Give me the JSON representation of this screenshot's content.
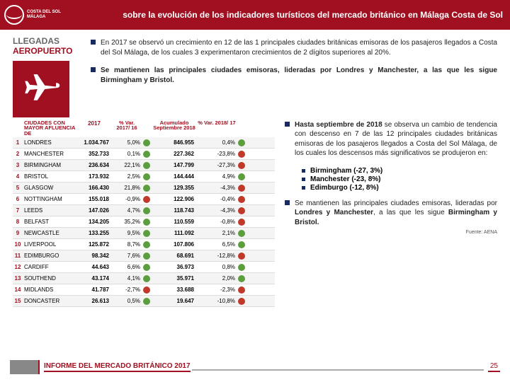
{
  "logo": {
    "line1": "COSTA DEL SOL",
    "line2": "MÁLAGA"
  },
  "header_title": "sobre la evolución de los indicadores turísticos del mercado británico en Málaga Costa de Sol",
  "section": {
    "line1": "LLEGADAS",
    "line2": "AEROPUERTO"
  },
  "bullets": {
    "b1": "En 2017 se observó un crecimiento en 12 de las 1 principales ciudades británicas emisoras de los pasajeros llegados a Costa del Sol Málaga, de los cuales 3 experimentaron crecimientos de 2 dígitos superiores al 20%.",
    "b2": "Se mantienen las principales ciudades emisoras, lideradas por Londres y Manchester, a las que les sigue Birmingham y Bristol.",
    "r1": "Hasta septiembre de 2018 se observa un cambio de tendencia con descenso en 7 de las 12 principales ciudades británicas emisoras de los pasajeros llegados a Costa del Sol Málaga, de los cuales los descensos más significativos se produjeron en:",
    "sub": [
      "Birmingham (-27, 3%)",
      "Manchester (-23, 8%)",
      "Edimburgo (-12, 8%)"
    ],
    "r2": "Se mantienen las principales ciudades emisoras, lideradas por Londres y Manchester, a las que les sigue Birmingham y Bristol."
  },
  "table": {
    "head": {
      "aflu": "CIUDADES CON MAYOR AFLUENCIA DE",
      "c2017": "2017",
      "var1": "% Var. 2017/ 16",
      "sep": "Acumulado Septiembre 2018",
      "var2": "% Var. 2018/ 17"
    },
    "rows": [
      {
        "i": 1,
        "city": "LONDRES",
        "v2017": "1.034.767",
        "var1": "5,0%",
        "d1": "green",
        "sep": "846.955",
        "var2": "0,4%",
        "d2": "green"
      },
      {
        "i": 2,
        "city": "MANCHESTER",
        "v2017": "352.733",
        "var1": "0,1%",
        "d1": "green",
        "sep": "227.362",
        "var2": "-23,8%",
        "d2": "redc"
      },
      {
        "i": 3,
        "city": "BIRMINGHAM",
        "v2017": "236.634",
        "var1": "22,1%",
        "d1": "green",
        "sep": "147.799",
        "var2": "-27,3%",
        "d2": "redc"
      },
      {
        "i": 4,
        "city": "BRISTOL",
        "v2017": "173.932",
        "var1": "2,5%",
        "d1": "green",
        "sep": "144.444",
        "var2": "4,9%",
        "d2": "green"
      },
      {
        "i": 5,
        "city": "GLASGOW",
        "v2017": "166.430",
        "var1": "21,8%",
        "d1": "green",
        "sep": "129.355",
        "var2": "-4,3%",
        "d2": "redc"
      },
      {
        "i": 6,
        "city": "NOTTINGHAM",
        "v2017": "155.018",
        "var1": "-0,9%",
        "d1": "redc",
        "sep": "122.906",
        "var2": "-0,4%",
        "d2": "redc"
      },
      {
        "i": 7,
        "city": "LEEDS",
        "v2017": "147.026",
        "var1": "4,7%",
        "d1": "green",
        "sep": "118.743",
        "var2": "-4,3%",
        "d2": "redc"
      },
      {
        "i": 8,
        "city": "BELFAST",
        "v2017": "134.205",
        "var1": "35,2%",
        "d1": "green",
        "sep": "110.559",
        "var2": "-0,8%",
        "d2": "redc"
      },
      {
        "i": 9,
        "city": "NEWCASTLE",
        "v2017": "133.255",
        "var1": "9,5%",
        "d1": "green",
        "sep": "111.092",
        "var2": "2,1%",
        "d2": "green"
      },
      {
        "i": 10,
        "city": "LIVERPOOL",
        "v2017": "125.872",
        "var1": "8,7%",
        "d1": "green",
        "sep": "107.806",
        "var2": "6,5%",
        "d2": "green"
      },
      {
        "i": 11,
        "city": "EDIMBURGO",
        "v2017": "98.342",
        "var1": "7,6%",
        "d1": "green",
        "sep": "68.691",
        "var2": "-12,8%",
        "d2": "redc"
      },
      {
        "i": 12,
        "city": "CARDIFF",
        "v2017": "44.643",
        "var1": "6,6%",
        "d1": "green",
        "sep": "36.973",
        "var2": "0,8%",
        "d2": "green"
      },
      {
        "i": 13,
        "city": "SOUTHEND",
        "v2017": "43.174",
        "var1": "4,1%",
        "d1": "green",
        "sep": "35.971",
        "var2": "2,0%",
        "d2": "green"
      },
      {
        "i": 14,
        "city": "MIDLANDS",
        "v2017": "41.787",
        "var1": "-2,7%",
        "d1": "redc",
        "sep": "33.688",
        "var2": "-2,3%",
        "d2": "redc"
      },
      {
        "i": 15,
        "city": "DONCASTER",
        "v2017": "26.613",
        "var1": "0,5%",
        "d1": "green",
        "sep": "19.647",
        "var2": "-10,8%",
        "d2": "redc"
      }
    ]
  },
  "fuente": "Fuente: AENA",
  "footer_title": "INFORME DEL MERCADO BRITÁNICO 2017",
  "page": "25"
}
